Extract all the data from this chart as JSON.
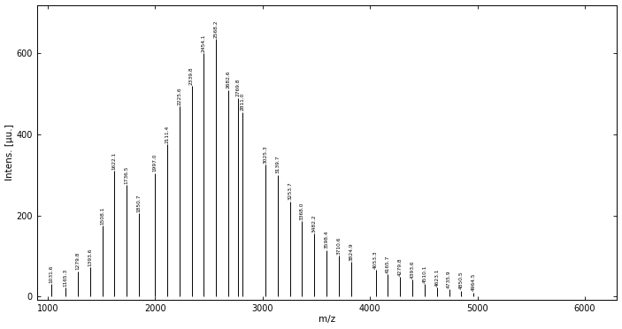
{
  "peaks": [
    [
      1031.6,
      30
    ],
    [
      1165.3,
      22
    ],
    [
      1279.8,
      62
    ],
    [
      1393.6,
      72
    ],
    [
      1508.1,
      175
    ],
    [
      1622.1,
      310
    ],
    [
      1736.5,
      275
    ],
    [
      1850.7,
      205
    ],
    [
      1997.0,
      305
    ],
    [
      2111.4,
      375
    ],
    [
      2225.6,
      470
    ],
    [
      2339.8,
      520
    ],
    [
      2454.1,
      600
    ],
    [
      2568.2,
      635
    ],
    [
      2682.6,
      510
    ],
    [
      2769.8,
      490
    ],
    [
      2811.0,
      455
    ],
    [
      3025.3,
      325
    ],
    [
      3139.7,
      300
    ],
    [
      3253.7,
      235
    ],
    [
      3368.0,
      185
    ],
    [
      3482.2,
      155
    ],
    [
      3598.4,
      115
    ],
    [
      3710.6,
      100
    ],
    [
      3824.9,
      85
    ],
    [
      4053.3,
      65
    ],
    [
      4165.7,
      55
    ],
    [
      4279.8,
      48
    ],
    [
      4393.6,
      42
    ],
    [
      4510.1,
      30
    ],
    [
      4623.1,
      22
    ],
    [
      4735.9,
      18
    ],
    [
      4850.5,
      14
    ],
    [
      4964.5,
      10
    ]
  ],
  "labeled_peaks": [
    [
      1031.6,
      30,
      "1031.6"
    ],
    [
      1165.3,
      22,
      "1165.3"
    ],
    [
      1279.8,
      62,
      "1279.8"
    ],
    [
      1393.6,
      72,
      "1393.6"
    ],
    [
      1508.1,
      175,
      "1508.1"
    ],
    [
      1622.1,
      310,
      "1622.1"
    ],
    [
      1736.5,
      275,
      "1736.5"
    ],
    [
      1850.7,
      205,
      "1850.7"
    ],
    [
      1997.0,
      305,
      "1997.0"
    ],
    [
      2111.4,
      375,
      "2111.4"
    ],
    [
      2225.6,
      470,
      "2225.6"
    ],
    [
      2339.8,
      520,
      "2339.8"
    ],
    [
      2454.1,
      600,
      "2454.1"
    ],
    [
      2568.2,
      635,
      "2568.2"
    ],
    [
      2682.6,
      510,
      "2682.6"
    ],
    [
      2769.8,
      490,
      "2769.8"
    ],
    [
      2811.0,
      455,
      "2811.0"
    ],
    [
      3025.3,
      325,
      "3025.3"
    ],
    [
      3139.7,
      300,
      "3139.7"
    ],
    [
      3253.7,
      235,
      "3253.7"
    ],
    [
      3368.0,
      185,
      "3368.0"
    ],
    [
      3482.2,
      155,
      "3482.2"
    ],
    [
      3598.4,
      115,
      "3598.4"
    ],
    [
      3710.6,
      100,
      "3710.6"
    ],
    [
      3824.9,
      85,
      "3824.9"
    ],
    [
      4053.3,
      65,
      "4053.3"
    ],
    [
      4165.7,
      55,
      "4165.7"
    ],
    [
      4279.8,
      48,
      "4279.8"
    ],
    [
      4393.6,
      42,
      "4393.6"
    ],
    [
      4510.1,
      30,
      "4510.1"
    ],
    [
      4623.1,
      22,
      "4623.1"
    ],
    [
      4735.9,
      18,
      "4735.9"
    ],
    [
      4850.5,
      14,
      "4850.5"
    ],
    [
      4964.5,
      10,
      "4964.5"
    ]
  ],
  "xlabel": "m/z",
  "ylabel": "Intens. [µu.]",
  "xlim": [
    900,
    6300
  ],
  "ylim": [
    -8,
    720
  ],
  "xticks": [
    1000,
    2000,
    3000,
    4000,
    5000,
    6000
  ],
  "yticks": [
    0,
    200,
    400,
    600
  ],
  "background_color": "#ffffff",
  "bar_color": "#000000",
  "label_fontsize": 4.2,
  "axis_label_fontsize": 7.5,
  "tick_fontsize": 7
}
